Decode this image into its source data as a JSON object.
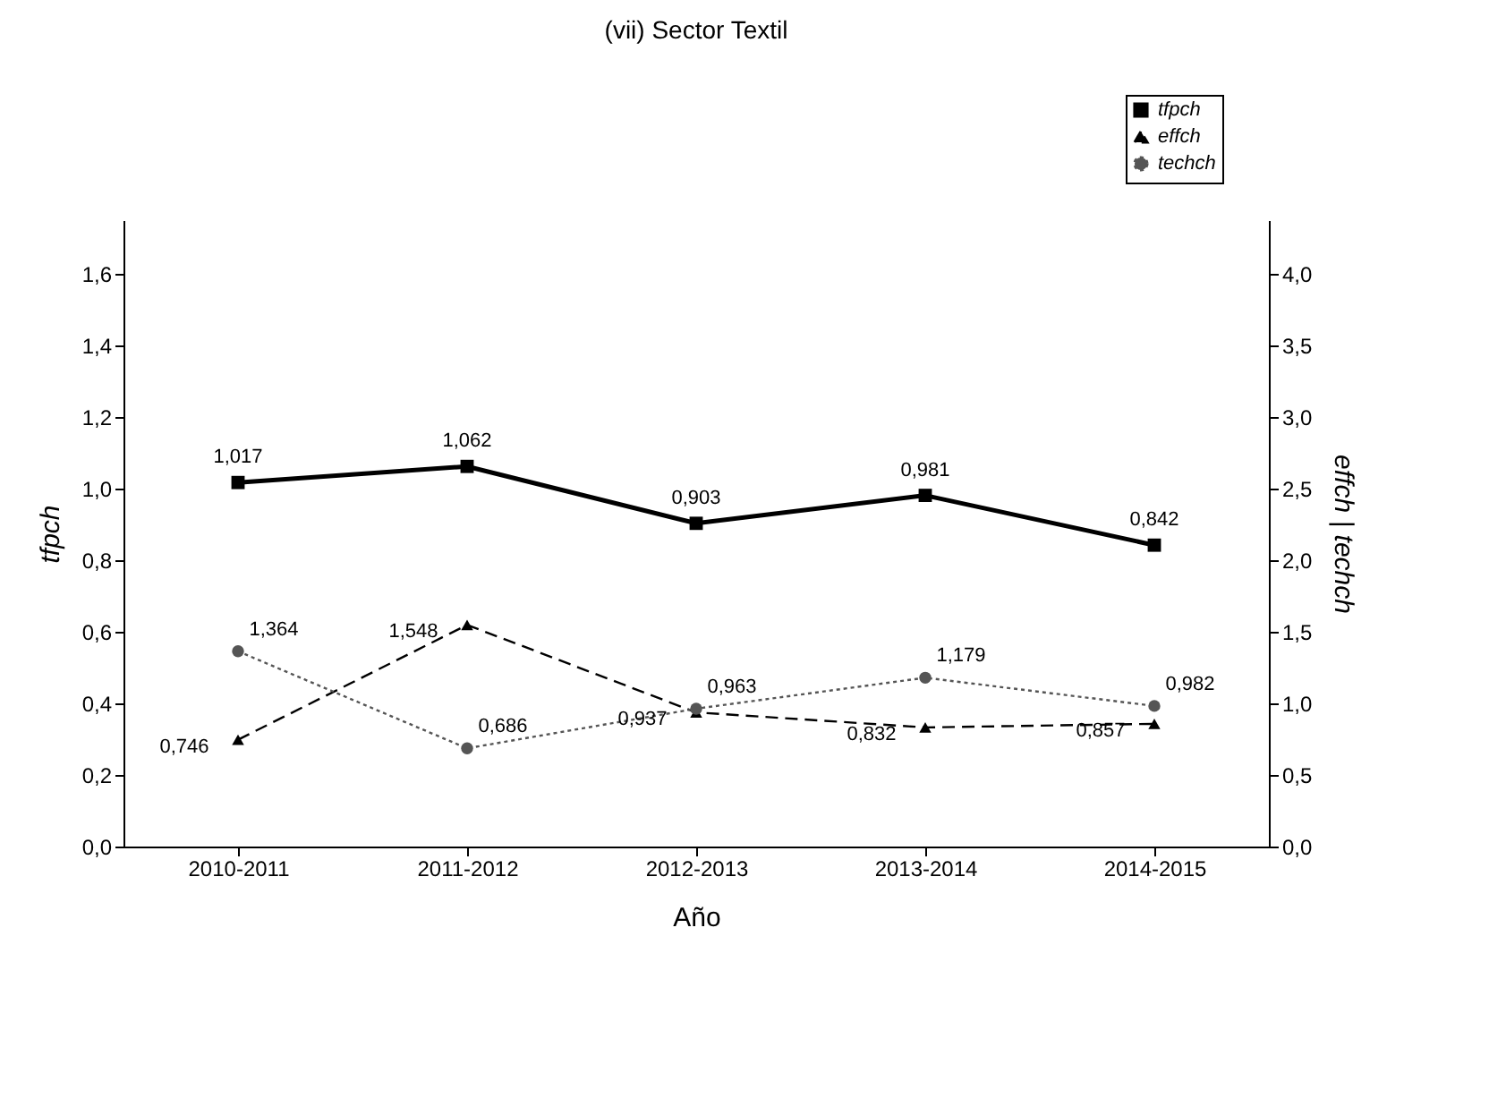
{
  "chart_data": {
    "type": "line",
    "title": "(vii) Sector Textil",
    "xlabel": "Año",
    "ylabel": "tfpch",
    "y2label": "effch | techch",
    "categories": [
      "2010-2011",
      "2011-2012",
      "2012-2013",
      "2013-2014",
      "2014-2015"
    ],
    "ylim": [
      0,
      1.75
    ],
    "yticks": [
      {
        "value": 0,
        "label": "0,0"
      },
      {
        "value": 0.2,
        "label": "0,2"
      },
      {
        "value": 0.4,
        "label": "0,4"
      },
      {
        "value": 0.6,
        "label": "0,6"
      },
      {
        "value": 0.8,
        "label": "0,8"
      },
      {
        "value": 1.0,
        "label": "1,0"
      },
      {
        "value": 1.2,
        "label": "1,2"
      },
      {
        "value": 1.4,
        "label": "1,4"
      },
      {
        "value": 1.6,
        "label": "1,6"
      }
    ],
    "y2lim": [
      0,
      4.375
    ],
    "y2ticks": [
      {
        "value": 0,
        "label": "0,0"
      },
      {
        "value": 0.5,
        "label": "0,5"
      },
      {
        "value": 1.0,
        "label": "1,0"
      },
      {
        "value": 1.5,
        "label": "1,5"
      },
      {
        "value": 2.0,
        "label": "2,0"
      },
      {
        "value": 2.5,
        "label": "2,5"
      },
      {
        "value": 3.0,
        "label": "3,0"
      },
      {
        "value": 3.5,
        "label": "3,5"
      },
      {
        "value": 4.0,
        "label": "4,0"
      }
    ],
    "legend": "top right",
    "grid": false,
    "series": [
      {
        "name": "tfpch",
        "color": "#000000",
        "marker": "square",
        "line_style": "solid",
        "values": [
          1.017,
          1.062,
          0.903,
          0.981,
          0.842
        ],
        "value_labels": [
          "1,017",
          "1,062",
          "0,903",
          "0,981",
          "0,842"
        ]
      },
      {
        "name": "effch",
        "color": "#000000",
        "marker": "triangle",
        "line_style": "dashed",
        "axis": "y2",
        "values": [
          0.746,
          1.548,
          0.937,
          0.832,
          0.857
        ],
        "value_labels": [
          "0,746",
          "1,548",
          "0,937",
          "0,832",
          "0,857"
        ]
      },
      {
        "name": "techch",
        "color": "#555555",
        "marker": "circle",
        "line_style": "dotted",
        "axis": "y2",
        "values": [
          1.364,
          0.686,
          0.963,
          1.179,
          0.982
        ],
        "value_labels": [
          "1,364",
          "0,686",
          "0,963",
          "1,179",
          "0,982"
        ]
      }
    ]
  }
}
